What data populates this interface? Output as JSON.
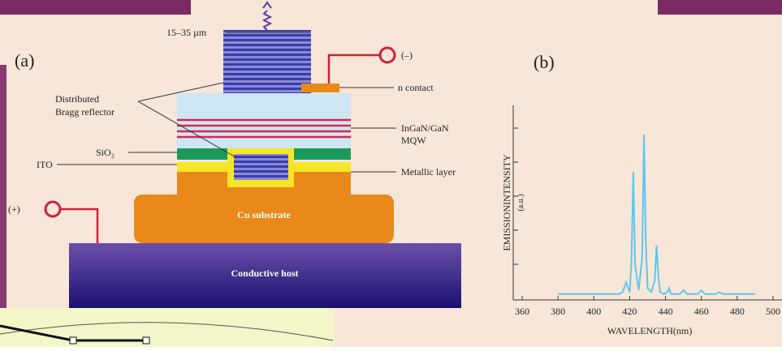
{
  "diagram": {
    "panel_a": "(a)",
    "width_label": "15–35 µm",
    "minus": "(–)",
    "n_contact": "n contact",
    "dbr": [
      "Distributed",
      "Bragg reflector"
    ],
    "mqw": [
      "InGaN/GaN",
      "MQW"
    ],
    "sio2": "SiO₂",
    "ito": "ITO",
    "metallic": "Metallic layer",
    "plus": "(+)",
    "cu": "Cu substrate",
    "host": "Conductive host",
    "panel_b": "(b)"
  },
  "chart_data": {
    "type": "line",
    "ylabel": "EMISSIONINTENSITY",
    "ylabel_units": "(a.u.)",
    "xlabel": "WAVELENGTH(nm)",
    "x": [
      380,
      414,
      416,
      418,
      420,
      421,
      422,
      423,
      425,
      427,
      428,
      429,
      430,
      432,
      434,
      435,
      436,
      437,
      439,
      441,
      442,
      443,
      448,
      450,
      452,
      458,
      460,
      462,
      468,
      470,
      472,
      490
    ],
    "series": [
      {
        "color": "#5bc8f0",
        "values": [
          3,
          3,
          4,
          9,
          4,
          20,
          66,
          18,
          5,
          22,
          85,
          30,
          6,
          4,
          10,
          28,
          12,
          4,
          3,
          4,
          6,
          3,
          3,
          5,
          3,
          3,
          5,
          3,
          3,
          4,
          3,
          3
        ]
      }
    ],
    "xlim": [
      355,
      505
    ],
    "xticks": [
      360,
      380,
      400,
      420,
      440,
      460,
      480,
      500
    ],
    "ylim": [
      0,
      100
    ]
  }
}
